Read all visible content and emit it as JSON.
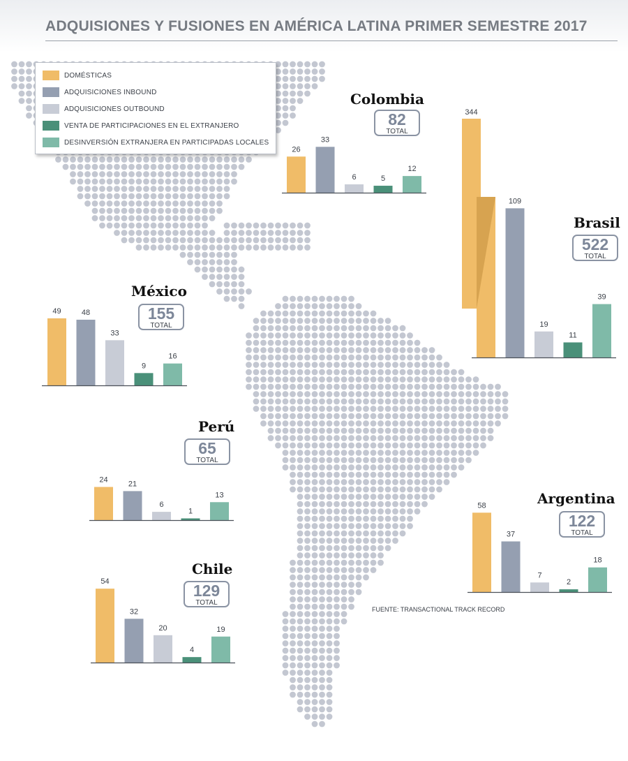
{
  "title": "ADQUISIONES Y FUSIONES EN AMÉRICA LATINA PRIMER SEMESTRE 2017",
  "source": "FUENTE: TRANSACTIONAL TRACK RECORD",
  "total_label": "TOTAL",
  "legend": [
    {
      "label": "DOMÉSTICAS",
      "color": "#f0bc68"
    },
    {
      "label": "ADQUISICIONES INBOUND",
      "color": "#959fb1"
    },
    {
      "label": "ADQUISICIONES OUTBOUND",
      "color": "#c8ccd6"
    },
    {
      "label": "VENTA DE PARTICIPACIONES EN EL EXTRANJERO",
      "color": "#4a9079"
    },
    {
      "label": "DESINVERSIÓN EXTRANJERA EN PARTICIPADAS LOCALES",
      "color": "#7fbaa8"
    }
  ],
  "chart_data": [
    {
      "type": "bar",
      "country": "Colombia",
      "total": "82",
      "values": [
        26,
        33,
        6,
        5,
        12
      ]
    },
    {
      "type": "bar",
      "country": "Brasil",
      "total": "522",
      "values": [
        344,
        109,
        19,
        11,
        39
      ],
      "broken_axis": true
    },
    {
      "type": "bar",
      "country": "México",
      "total": "155",
      "values": [
        49,
        48,
        33,
        9,
        16
      ]
    },
    {
      "type": "bar",
      "country": "Perú",
      "total": "65",
      "values": [
        24,
        21,
        6,
        1,
        13
      ]
    },
    {
      "type": "bar",
      "country": "Chile",
      "total": "129",
      "values": [
        54,
        32,
        20,
        4,
        19
      ]
    },
    {
      "type": "bar",
      "country": "Argentina",
      "total": "122",
      "values": [
        58,
        37,
        7,
        2,
        18
      ]
    }
  ]
}
